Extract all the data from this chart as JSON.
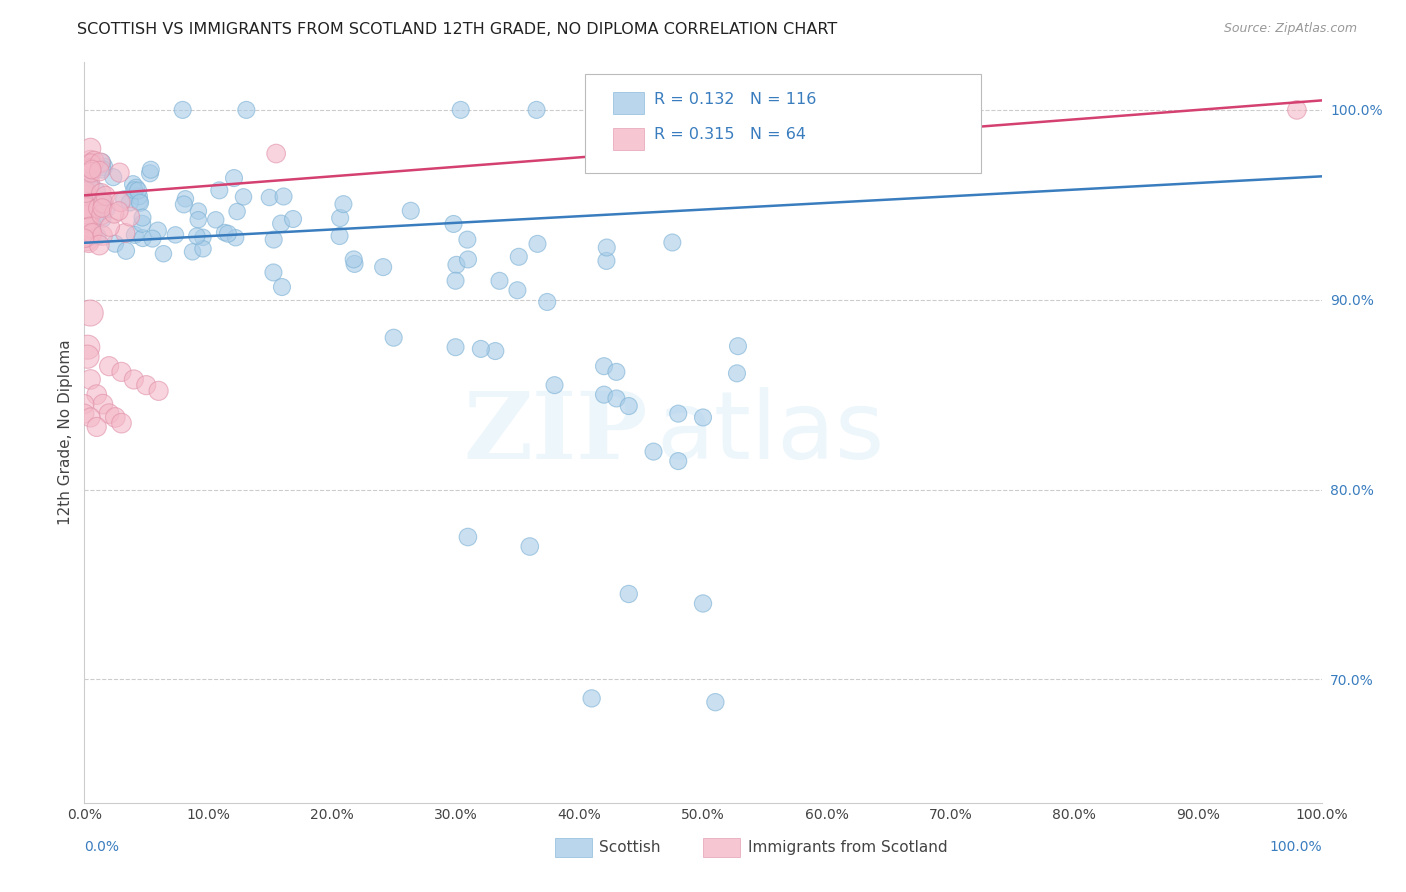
{
  "title": "SCOTTISH VS IMMIGRANTS FROM SCOTLAND 12TH GRADE, NO DIPLOMA CORRELATION CHART",
  "source": "Source: ZipAtlas.com",
  "ylabel": "12th Grade, No Diploma",
  "xlim": [
    0.0,
    1.0
  ],
  "ylim": [
    0.635,
    1.025
  ],
  "yticks_right": [
    0.7,
    0.8,
    0.9,
    1.0
  ],
  "ytick_right_labels": [
    "70.0%",
    "80.0%",
    "90.0%",
    "100.0%"
  ],
  "background_color": "#ffffff",
  "watermark_zip": "ZIP",
  "watermark_atlas": "atlas",
  "legend_blue_label": "Scottish",
  "legend_pink_label": "Immigrants from Scotland",
  "R_blue": 0.132,
  "N_blue": 116,
  "R_pink": 0.315,
  "N_pink": 64,
  "blue_color": "#a8cce8",
  "pink_color": "#f4b8c8",
  "blue_line_color": "#3a7dbf",
  "pink_line_color": "#d44070",
  "blue_line_y0": 0.93,
  "blue_line_y1": 0.965,
  "pink_line_y0": 0.955,
  "pink_line_y1": 1.005
}
